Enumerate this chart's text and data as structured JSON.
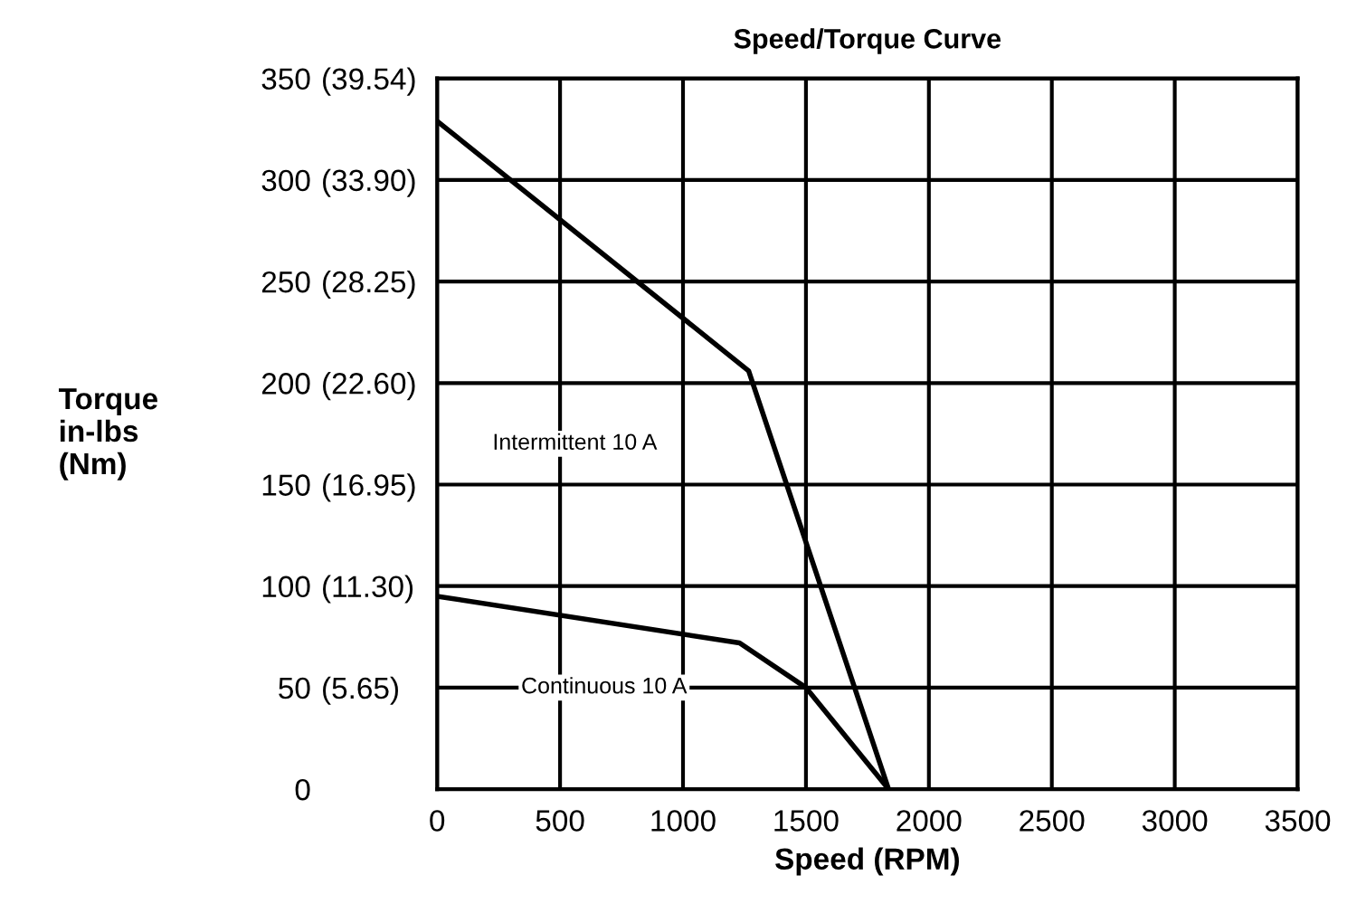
{
  "chart_data": {
    "type": "line",
    "title": "Speed/Torque Curve",
    "xlabel": "Speed (RPM)",
    "ylabel": "Torque\nin-lbs\n(Nm)",
    "series": [
      {
        "color": "#000000",
        "x": [
          0,
          1267,
          1836
        ],
        "values": [
          329,
          206,
          0
        ]
      },
      {
        "color": "#000000",
        "x": [
          0,
          1230,
          1500,
          1836
        ],
        "values": [
          95,
          72,
          50,
          0
        ]
      }
    ],
    "annotations": [
      "Intermittent 10 A",
      "Continuous 10 A"
    ],
    "xlim": [
      0,
      3500
    ],
    "xticks": [
      0,
      500,
      1000,
      1500,
      2000,
      2500,
      3000,
      3500
    ],
    "ylim": [
      0,
      350
    ],
    "yticks": [
      0,
      50,
      100,
      150,
      200,
      250,
      300,
      350
    ],
    "y2lim": [
      0,
      39.54
    ],
    "y2ticks": [
      {
        "value": 5.65,
        "label": "(5.65)"
      },
      {
        "value": 11.3,
        "label": "(11.30)"
      },
      {
        "value": 16.95,
        "label": "(16.95)"
      },
      {
        "value": 22.6,
        "label": "(22.60)"
      },
      {
        "value": 28.25,
        "label": "(28.25)"
      },
      {
        "value": 33.9,
        "label": "(33.90)"
      },
      {
        "value": 39.54,
        "label": "(39.54)"
      }
    ],
    "grid": true,
    "legend": false,
    "marker": "none",
    "line_style": "solid"
  }
}
